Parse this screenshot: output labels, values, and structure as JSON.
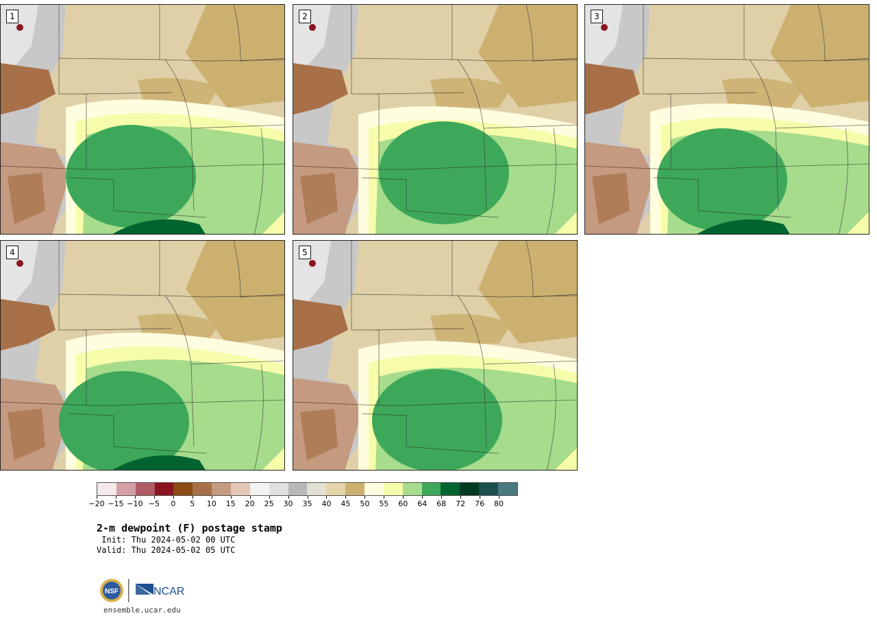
{
  "panels": [
    {
      "label": "1"
    },
    {
      "label": "2"
    },
    {
      "label": "3"
    },
    {
      "label": "4"
    },
    {
      "label": "5"
    }
  ],
  "colorbar": {
    "colors": [
      "#f4e8e8",
      "#d4a0a6",
      "#b05a64",
      "#8a1420",
      "#8a4a10",
      "#a87048",
      "#c49a80",
      "#e2c6b6",
      "#f2f2f2",
      "#e0e0e0",
      "#b8b8b8",
      "#e2e0d4",
      "#e4d4aa",
      "#ccb070",
      "#fffde0",
      "#f6fcaa",
      "#a6dc8c",
      "#3ea85a",
      "#006430",
      "#003a20",
      "#1c5050",
      "#4a7880"
    ],
    "tick_labels": [
      "−20",
      "−15",
      "−10",
      "−5",
      "0",
      "5",
      "10",
      "15",
      "20",
      "25",
      "30",
      "35",
      "40",
      "45",
      "50",
      "55",
      "60",
      "64",
      "68",
      "72",
      "76",
      "80"
    ]
  },
  "title": "2-m dewpoint (F) postage stamp",
  "init": " Init: Thu 2024-05-02 00 UTC",
  "valid": "Valid: Thu 2024-05-02 05 UTC",
  "logos": {
    "nsf": "NSF",
    "ncar": "NCAR"
  },
  "site": "ensemble.ucar.edu"
}
